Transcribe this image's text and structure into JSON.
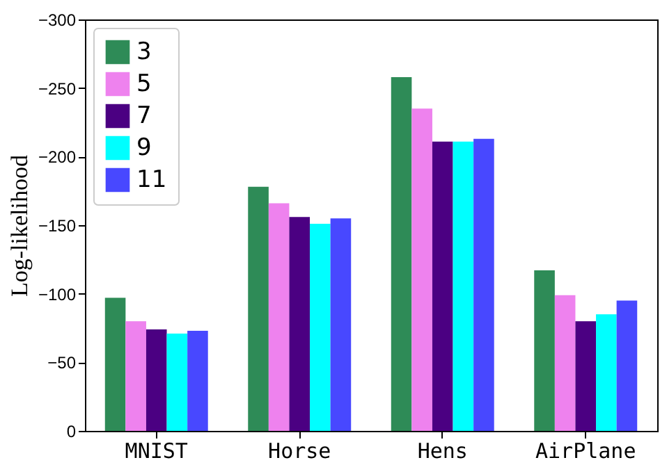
{
  "chart_data": {
    "type": "bar",
    "ylabel": "Log-likelihood",
    "categories": [
      "MNIST",
      "Horse",
      "Hens",
      "AirPlane"
    ],
    "series": [
      {
        "name": "3",
        "color": "#2e8b57",
        "values": [
          -97,
          -178,
          -258,
          -117
        ]
      },
      {
        "name": "5",
        "color": "#ee82ee",
        "values": [
          -80,
          -166,
          -235,
          -99
        ]
      },
      {
        "name": "7",
        "color": "#4b0082",
        "values": [
          -74,
          -156,
          -211,
          -80
        ]
      },
      {
        "name": "9",
        "color": "#00ffff",
        "values": [
          -71,
          -151,
          -211,
          -85
        ]
      },
      {
        "name": "11",
        "color": "#4848ff",
        "values": [
          -73,
          -155,
          -213,
          -95
        ]
      }
    ],
    "ylim": [
      0,
      -300
    ],
    "yticks": [
      0,
      -50,
      -100,
      -150,
      -200,
      -250,
      -300
    ],
    "grid": false,
    "legend": "top left"
  }
}
